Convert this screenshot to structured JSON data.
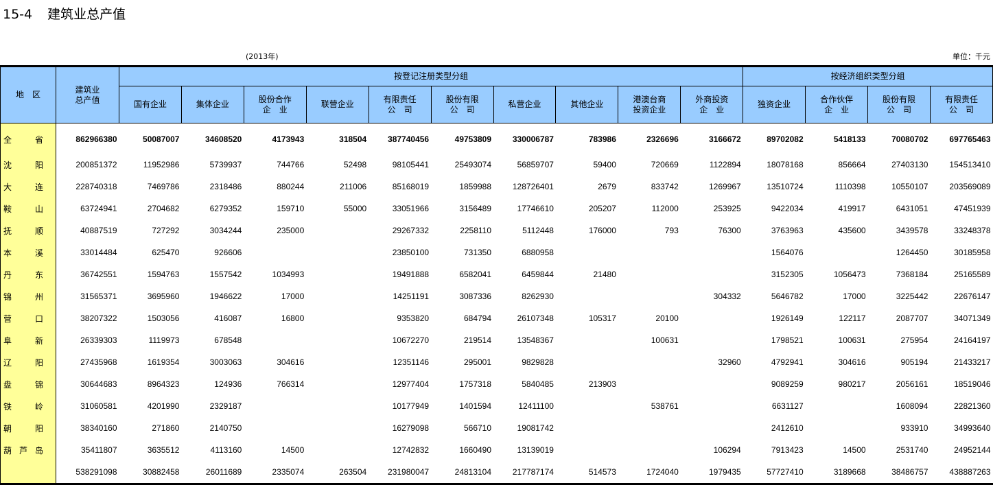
{
  "title": {
    "code": "15-4",
    "name": "建筑业总产值"
  },
  "year_note": "(2013年)",
  "unit_note": "单位：千元",
  "header": {
    "region": "地　区",
    "total": "建筑业\n总产值",
    "group1": "按登记注册类型分组",
    "group2": "按经济组织类型分组",
    "columns": [
      "国有企业",
      "集体企业",
      "股份合作\n企　业",
      "联营企业",
      "有限责任\n公　司",
      "股份有限\n公　司",
      "私营企业",
      "其他企业",
      "港澳台商\n投资企业",
      "外商投资\n企　业",
      "独资企业",
      "合作伙伴\n企　业",
      "股份有限\n公　司",
      "有限责任\n公　司"
    ]
  },
  "rows": [
    {
      "region": "全省",
      "values": [
        "862966380",
        "50087007",
        "34608520",
        "4173943",
        "318504",
        "387740456",
        "49753809",
        "330006787",
        "783986",
        "2326696",
        "3166672",
        "89702082",
        "5418133",
        "70080702",
        "697765463"
      ]
    },
    {
      "region": "沈阳",
      "values": [
        "200851372",
        "11952986",
        "5739937",
        "744766",
        "52498",
        "98105441",
        "25493074",
        "56859707",
        "59400",
        "720669",
        "1122894",
        "18078168",
        "856664",
        "27403130",
        "154513410"
      ]
    },
    {
      "region": "大连",
      "values": [
        "228740318",
        "7469786",
        "2318486",
        "880244",
        "211006",
        "85168019",
        "1859988",
        "128726401",
        "2679",
        "833742",
        "1269967",
        "13510724",
        "1110398",
        "10550107",
        "203569089"
      ]
    },
    {
      "region": "鞍山",
      "values": [
        "63724941",
        "2704682",
        "6279352",
        "159710",
        "55000",
        "33051966",
        "3156489",
        "17746610",
        "205207",
        "112000",
        "253925",
        "9422034",
        "419917",
        "6431051",
        "47451939"
      ]
    },
    {
      "region": "抚顺",
      "values": [
        "40887519",
        "727292",
        "3034244",
        "235000",
        "",
        "29267332",
        "2258110",
        "5112448",
        "176000",
        "793",
        "76300",
        "3763963",
        "435600",
        "3439578",
        "33248378"
      ]
    },
    {
      "region": "本溪",
      "values": [
        "33014484",
        "625470",
        "926606",
        "",
        "",
        "23850100",
        "731350",
        "6880958",
        "",
        "",
        "",
        "1564076",
        "",
        "1264450",
        "30185958"
      ]
    },
    {
      "region": "丹东",
      "values": [
        "36742551",
        "1594763",
        "1557542",
        "1034993",
        "",
        "19491888",
        "6582041",
        "6459844",
        "21480",
        "",
        "",
        "3152305",
        "1056473",
        "7368184",
        "25165589"
      ]
    },
    {
      "region": "锦州",
      "values": [
        "31565371",
        "3695960",
        "1946622",
        "17000",
        "",
        "14251191",
        "3087336",
        "8262930",
        "",
        "",
        "304332",
        "5646782",
        "17000",
        "3225442",
        "22676147"
      ]
    },
    {
      "region": "营口",
      "values": [
        "38207322",
        "1503056",
        "416087",
        "16800",
        "",
        "9353820",
        "684794",
        "26107348",
        "105317",
        "20100",
        "",
        "1926149",
        "122117",
        "2087707",
        "34071349"
      ]
    },
    {
      "region": "阜新",
      "values": [
        "26339303",
        "1119973",
        "678548",
        "",
        "",
        "10672270",
        "219514",
        "13548367",
        "",
        "100631",
        "",
        "1798521",
        "100631",
        "275954",
        "24164197"
      ]
    },
    {
      "region": "辽阳",
      "values": [
        "27435968",
        "1619354",
        "3003063",
        "304616",
        "",
        "12351146",
        "295001",
        "9829828",
        "",
        "",
        "32960",
        "4792941",
        "304616",
        "905194",
        "21433217"
      ]
    },
    {
      "region": "盘锦",
      "values": [
        "30644683",
        "8964323",
        "124936",
        "766314",
        "",
        "12977404",
        "1757318",
        "5840485",
        "213903",
        "",
        "",
        "9089259",
        "980217",
        "2056161",
        "18519046"
      ]
    },
    {
      "region": "铁岭",
      "values": [
        "31060581",
        "4201990",
        "2329187",
        "",
        "",
        "10177949",
        "1401594",
        "12411100",
        "",
        "538761",
        "",
        "6631127",
        "",
        "1608094",
        "22821360"
      ]
    },
    {
      "region": "朝阳",
      "values": [
        "38340160",
        "271860",
        "2140750",
        "",
        "",
        "16279098",
        "566710",
        "19081742",
        "",
        "",
        "",
        "2412610",
        "",
        "933910",
        "34993640"
      ]
    },
    {
      "region": "葫芦岛",
      "values": [
        "35411807",
        "3635512",
        "4113160",
        "14500",
        "",
        "12742832",
        "1660490",
        "13139019",
        "",
        "",
        "106294",
        "7913423",
        "14500",
        "2531740",
        "24952144"
      ]
    },
    {
      "region": "",
      "values": [
        "538291098",
        "30882458",
        "26011689",
        "2335074",
        "263504",
        "231980047",
        "24813104",
        "217787174",
        "514573",
        "1724040",
        "1979435",
        "57727410",
        "3189668",
        "38486757",
        "438887263"
      ]
    }
  ],
  "colors": {
    "header_bg": "#99CCFF",
    "region_bg": "#FFFF99"
  }
}
